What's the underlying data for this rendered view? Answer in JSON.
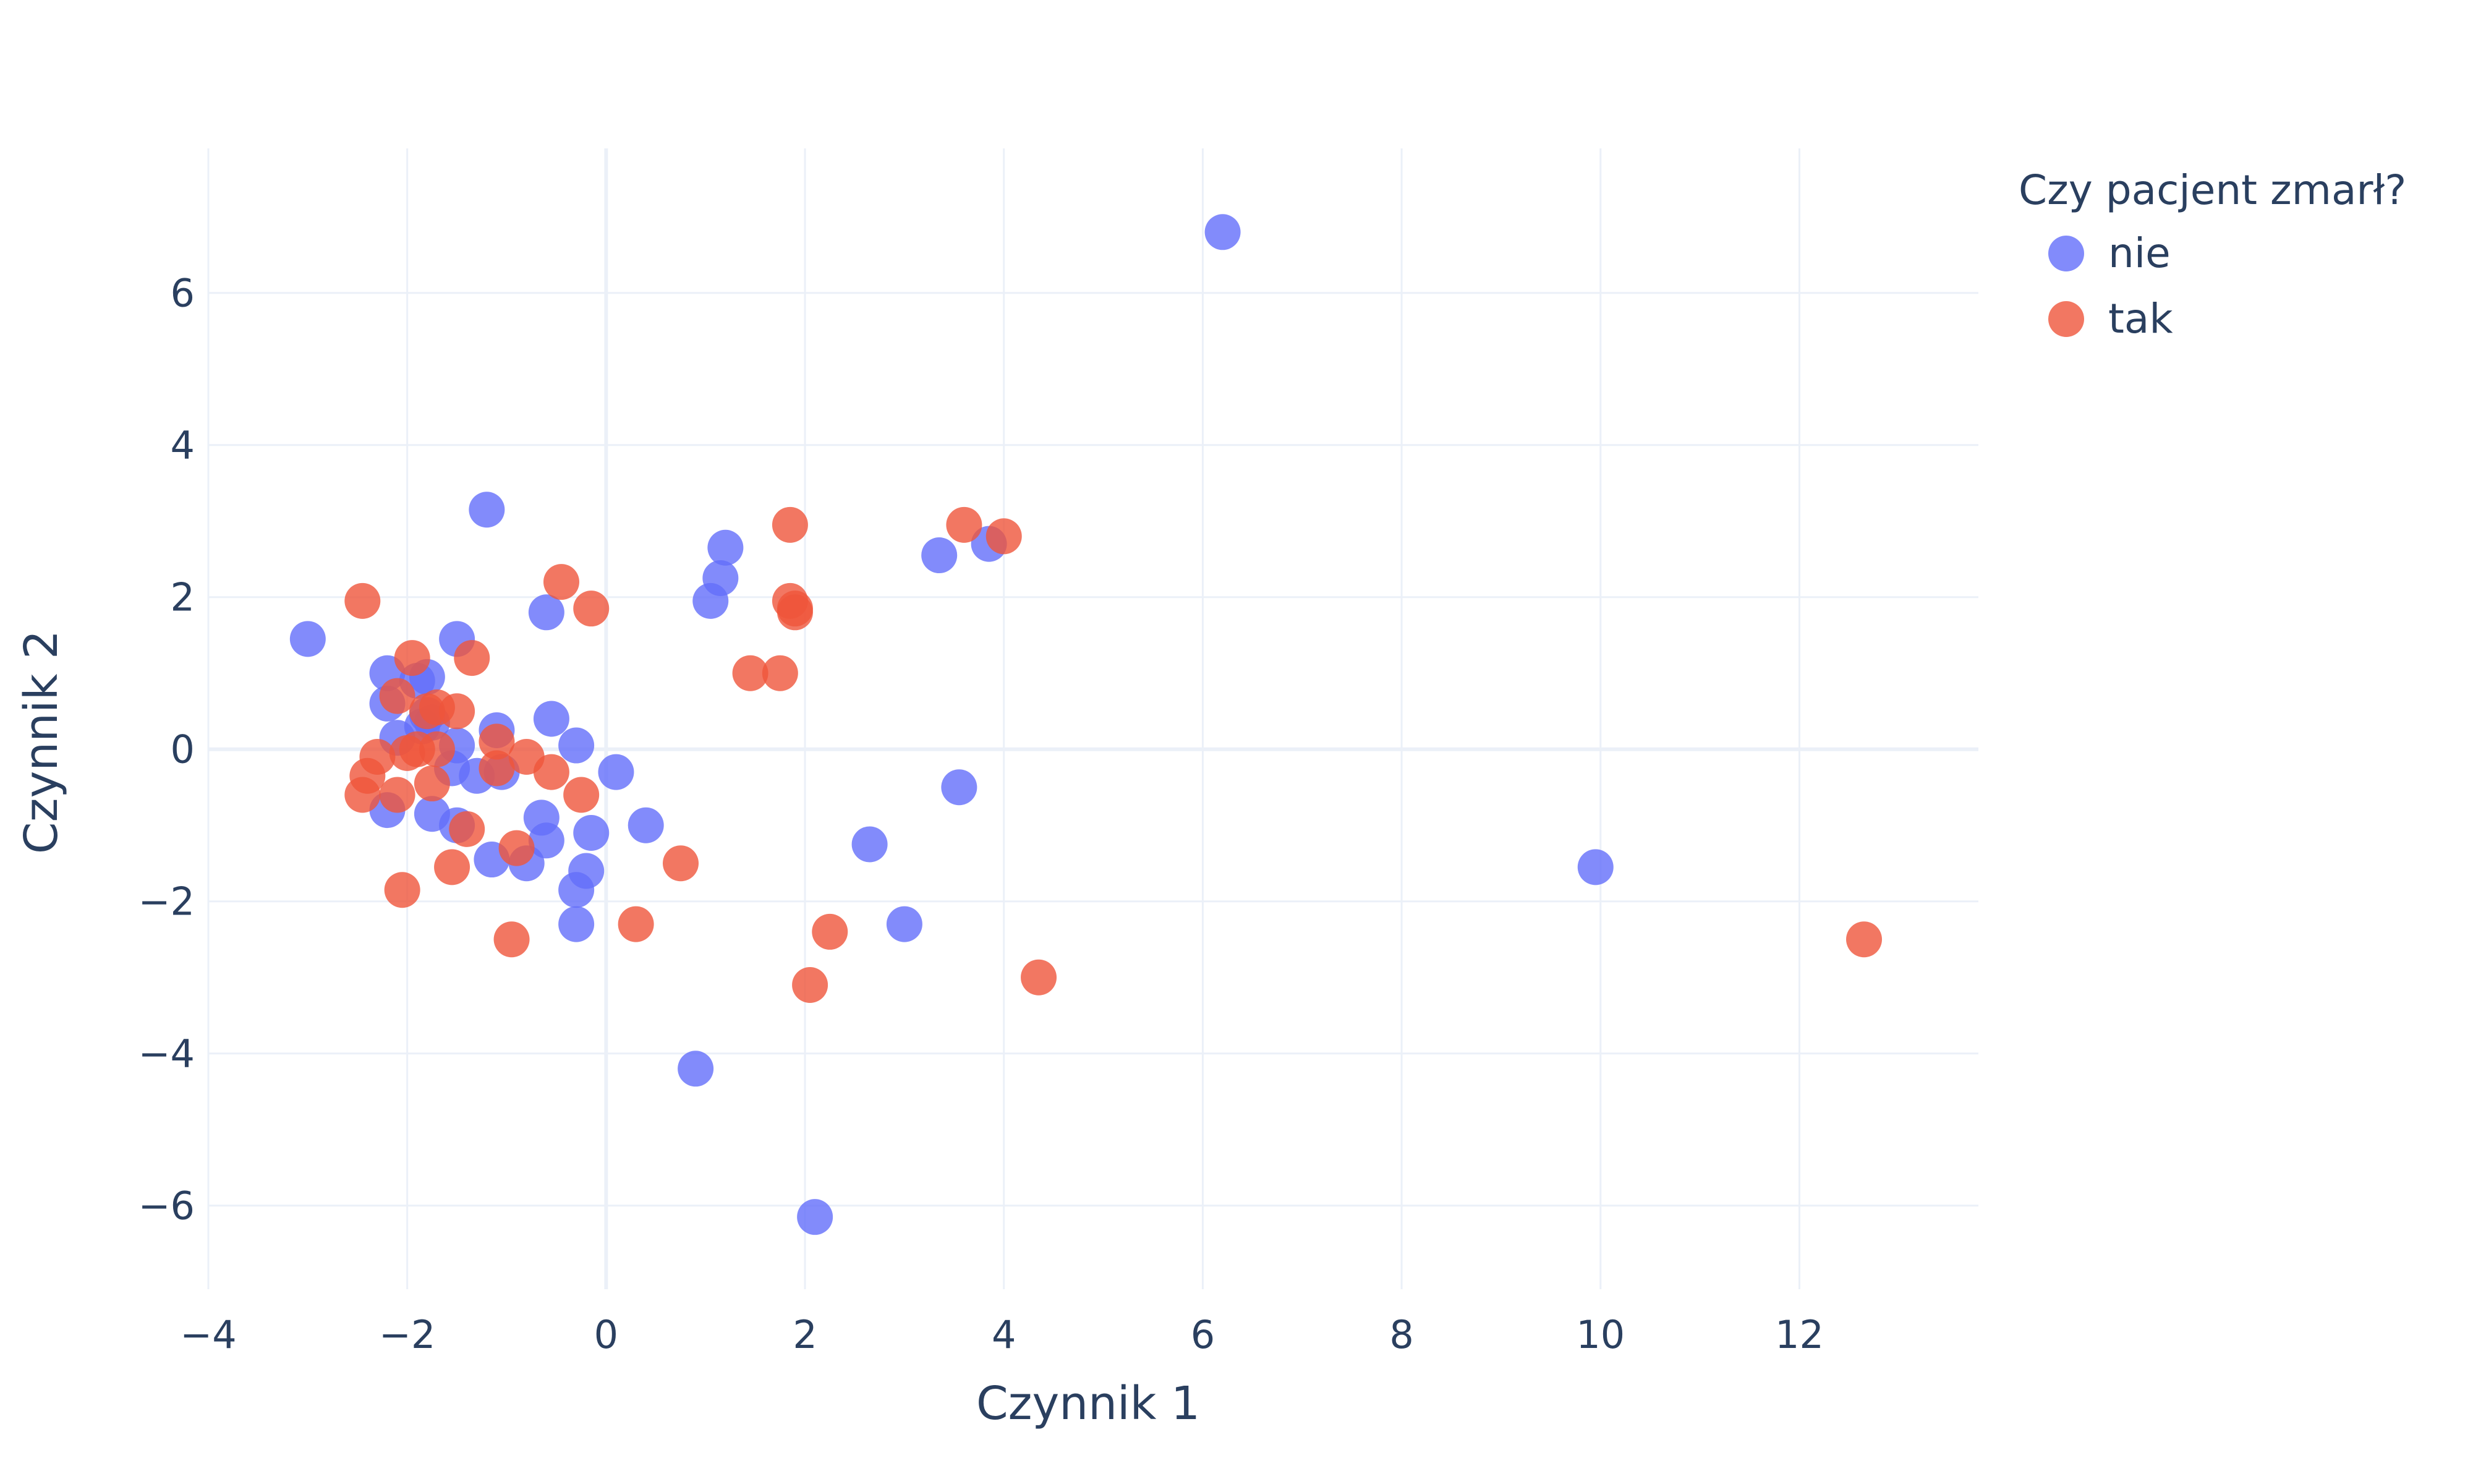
{
  "chart_data": {
    "type": "scatter",
    "xlabel": "Czynnik 1",
    "ylabel": "Czynnik 2",
    "xlim": [
      -4.0,
      13.8
    ],
    "ylim": [
      -7.1,
      7.9
    ],
    "xticks": [
      -4,
      -2,
      0,
      2,
      4,
      6,
      8,
      10,
      12
    ],
    "yticks": [
      -6,
      -4,
      -2,
      0,
      2,
      4,
      6
    ],
    "xtick_labels": [
      "−4",
      "−2",
      "0",
      "2",
      "4",
      "6",
      "8",
      "10",
      "12"
    ],
    "ytick_labels": [
      "−6",
      "−4",
      "−2",
      "0",
      "2",
      "4",
      "6"
    ],
    "grid": true,
    "legend": {
      "title": "Czy pacjent zmarł?",
      "placement": "top-right, outside plot"
    },
    "series": [
      {
        "name": "nie",
        "color": "#636efa",
        "points": [
          [
            -3.0,
            1.45
          ],
          [
            -2.2,
            1.0
          ],
          [
            -2.2,
            0.6
          ],
          [
            -2.1,
            0.15
          ],
          [
            -2.2,
            -0.8
          ],
          [
            -1.9,
            0.9
          ],
          [
            -1.8,
            0.95
          ],
          [
            -1.85,
            0.3
          ],
          [
            -1.8,
            0.45
          ],
          [
            -1.75,
            0.35
          ],
          [
            -1.75,
            -0.85
          ],
          [
            -1.55,
            -0.25
          ],
          [
            -1.5,
            0.05
          ],
          [
            -1.5,
            1.45
          ],
          [
            -1.5,
            -1.0
          ],
          [
            -1.3,
            -0.35
          ],
          [
            -1.2,
            3.15
          ],
          [
            -1.15,
            -1.45
          ],
          [
            -1.1,
            0.25
          ],
          [
            -1.05,
            -0.3
          ],
          [
            -0.8,
            -1.5
          ],
          [
            -0.65,
            -0.9
          ],
          [
            -0.6,
            -1.2
          ],
          [
            -0.6,
            1.8
          ],
          [
            -0.55,
            0.4
          ],
          [
            -0.3,
            0.05
          ],
          [
            -0.3,
            -1.85
          ],
          [
            -0.3,
            -2.3
          ],
          [
            -0.2,
            -1.6
          ],
          [
            -0.15,
            -1.1
          ],
          [
            0.1,
            -0.3
          ],
          [
            0.4,
            -1.0
          ],
          [
            0.9,
            -4.2
          ],
          [
            1.05,
            1.95
          ],
          [
            1.15,
            2.25
          ],
          [
            1.2,
            2.65
          ],
          [
            2.1,
            -6.15
          ],
          [
            2.65,
            -1.25
          ],
          [
            3.0,
            -2.3
          ],
          [
            3.35,
            2.55
          ],
          [
            3.55,
            -0.5
          ],
          [
            3.85,
            2.7
          ],
          [
            6.2,
            6.8
          ],
          [
            9.95,
            -1.55
          ]
        ]
      },
      {
        "name": "tak",
        "color": "#ef553b",
        "points": [
          [
            -2.45,
            1.95
          ],
          [
            -2.45,
            -0.6
          ],
          [
            -2.4,
            -0.35
          ],
          [
            -2.3,
            -0.1
          ],
          [
            -2.1,
            0.7
          ],
          [
            -2.1,
            -0.6
          ],
          [
            -2.05,
            -1.85
          ],
          [
            -2.0,
            -0.05
          ],
          [
            -1.95,
            1.2
          ],
          [
            -1.9,
            0.0
          ],
          [
            -1.8,
            0.5
          ],
          [
            -1.75,
            -0.45
          ],
          [
            -1.7,
            0.55
          ],
          [
            -1.7,
            0.0
          ],
          [
            -1.55,
            -1.55
          ],
          [
            -1.5,
            0.5
          ],
          [
            -1.4,
            -1.05
          ],
          [
            -1.35,
            1.2
          ],
          [
            -1.1,
            0.1
          ],
          [
            -1.1,
            -0.25
          ],
          [
            -0.95,
            -2.5
          ],
          [
            -0.9,
            -1.3
          ],
          [
            -0.8,
            -0.1
          ],
          [
            -0.55,
            -0.3
          ],
          [
            -0.45,
            2.2
          ],
          [
            -0.25,
            -0.6
          ],
          [
            -0.15,
            1.85
          ],
          [
            0.3,
            -2.3
          ],
          [
            0.75,
            -1.5
          ],
          [
            1.45,
            1.0
          ],
          [
            1.75,
            1.0
          ],
          [
            1.85,
            2.95
          ],
          [
            1.85,
            1.95
          ],
          [
            1.9,
            1.85
          ],
          [
            1.9,
            1.8
          ],
          [
            2.05,
            -3.1
          ],
          [
            2.25,
            -2.4
          ],
          [
            3.6,
            2.95
          ],
          [
            4.0,
            2.8
          ],
          [
            4.35,
            -3.0
          ],
          [
            12.65,
            -2.5
          ]
        ]
      }
    ]
  }
}
